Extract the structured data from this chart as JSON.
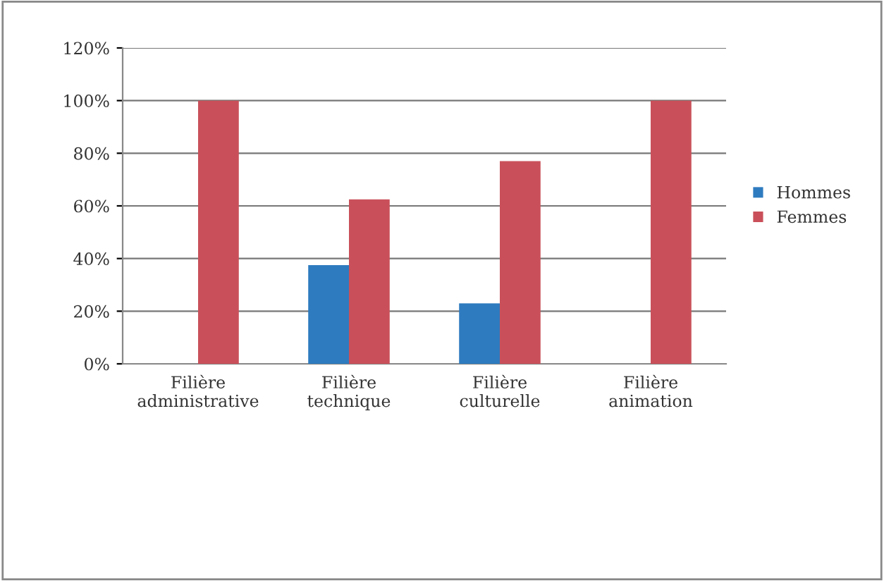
{
  "chart_data": {
    "type": "bar",
    "categories": [
      "Filière\nadministrative",
      "Filière\ntechnique",
      "Filière\nculturelle",
      "Filière\nanimation"
    ],
    "series": [
      {
        "name": "Hommes",
        "color": "#2e7bbf",
        "values": [
          0,
          37.5,
          23,
          0
        ]
      },
      {
        "name": "Femmes",
        "color": "#c9505a",
        "values": [
          100,
          62.5,
          77,
          100
        ]
      }
    ],
    "ylim": [
      0,
      120
    ],
    "yticks": [
      {
        "value": 0,
        "label": "0%"
      },
      {
        "value": 20,
        "label": "20%"
      },
      {
        "value": 40,
        "label": "40%"
      },
      {
        "value": 60,
        "label": "60%"
      },
      {
        "value": 80,
        "label": "80%"
      },
      {
        "value": 100,
        "label": "100%"
      },
      {
        "value": 120,
        "label": "120%"
      }
    ],
    "grid": "y",
    "legend": "right"
  }
}
